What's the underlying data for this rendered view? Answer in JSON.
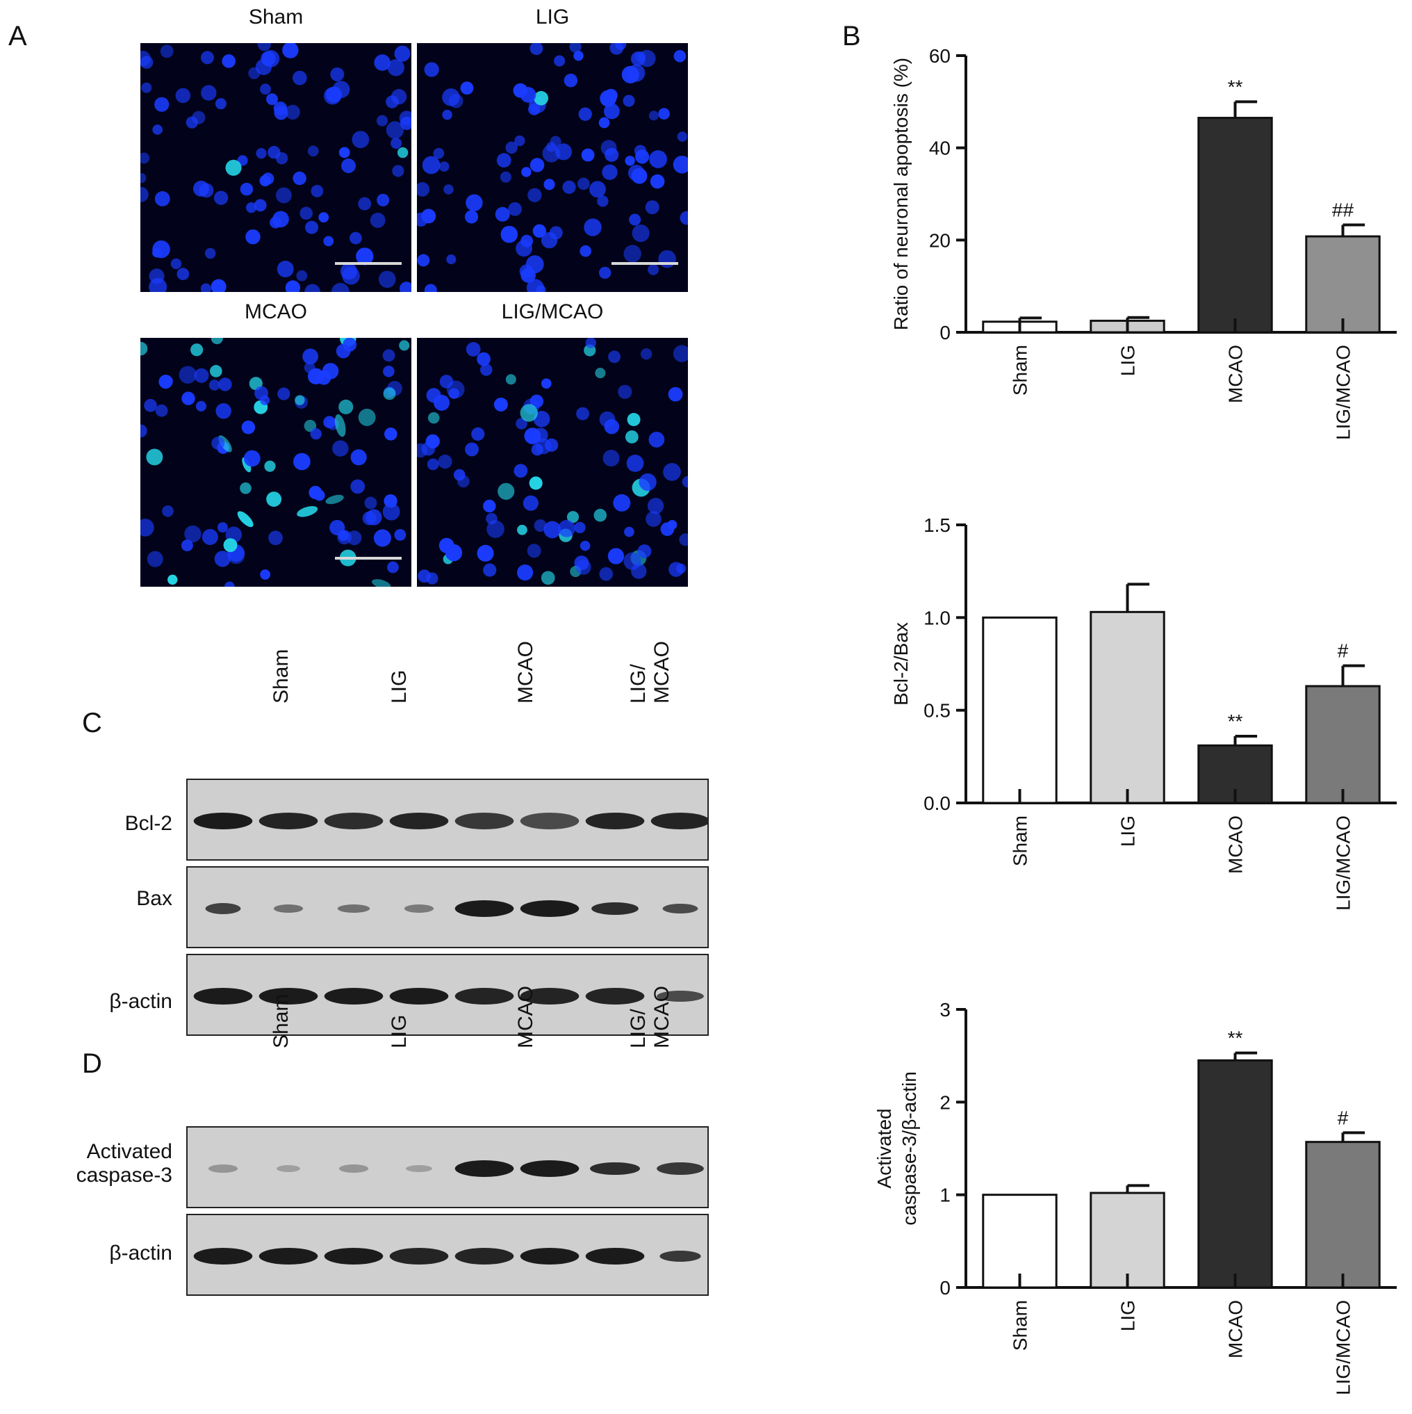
{
  "panels": {
    "A": "A",
    "B": "B",
    "C": "C",
    "D": "D"
  },
  "micrographs": {
    "labels": [
      "Sham",
      "LIG",
      "MCAO",
      "LIG/MCAO"
    ],
    "nucleus_color": "#1a3cff",
    "bright_color": "#25d4e6",
    "background_color": "#02031a",
    "scale_bar_color": "#d8d8d8"
  },
  "blots": {
    "lane_groups": [
      "Sham",
      "LIG",
      "MCAO",
      "LIG/\nMCAO"
    ],
    "C_rows": [
      "Bcl-2",
      "Bax",
      "β-actin"
    ],
    "D_rows": [
      "Activated\ncaspase-3",
      "β-actin"
    ]
  },
  "chart_data": [
    {
      "type": "bar",
      "categories": [
        "Sham",
        "LIG",
        "MCAO",
        "LIG/MCAO"
      ],
      "values": [
        2.3,
        2.5,
        46.5,
        20.8
      ],
      "errors": [
        0.8,
        0.7,
        3.5,
        2.5
      ],
      "annotations": [
        "",
        "",
        "**",
        "##"
      ],
      "ylabel": "Ratio of neuronal apoptosis (%)",
      "ylim": [
        0,
        60
      ],
      "yticks": [
        "0",
        "20",
        "40",
        "60"
      ],
      "bar_colors": [
        "#ffffff",
        "#cccccc",
        "#2e2e2e",
        "#909090"
      ]
    },
    {
      "type": "bar",
      "categories": [
        "Sham",
        "LIG",
        "MCAO",
        "LIG/MCAO"
      ],
      "values": [
        1.0,
        1.03,
        0.31,
        0.63
      ],
      "errors": [
        0.0,
        0.15,
        0.05,
        0.11
      ],
      "annotations": [
        "",
        "",
        "**",
        "#"
      ],
      "ylabel": "Bcl-2/Bax",
      "ylim": [
        0,
        1.5
      ],
      "yticks": [
        "0.0",
        "0.5",
        "1.0",
        "1.5"
      ],
      "bar_colors": [
        "#ffffff",
        "#d4d4d4",
        "#2e2e2e",
        "#7a7a7a"
      ]
    },
    {
      "type": "bar",
      "categories": [
        "Sham",
        "LIG",
        "MCAO",
        "LIG/MCAO"
      ],
      "values": [
        1.0,
        1.02,
        2.45,
        1.57
      ],
      "errors": [
        0.0,
        0.08,
        0.08,
        0.1
      ],
      "annotations": [
        "",
        "",
        "**",
        "#"
      ],
      "ylabel": "Activated\ncaspase-3/β-actin",
      "ylim": [
        0,
        3
      ],
      "yticks": [
        "0",
        "1",
        "2",
        "3"
      ],
      "bar_colors": [
        "#ffffff",
        "#d4d4d4",
        "#2e2e2e",
        "#7a7a7a"
      ]
    }
  ]
}
